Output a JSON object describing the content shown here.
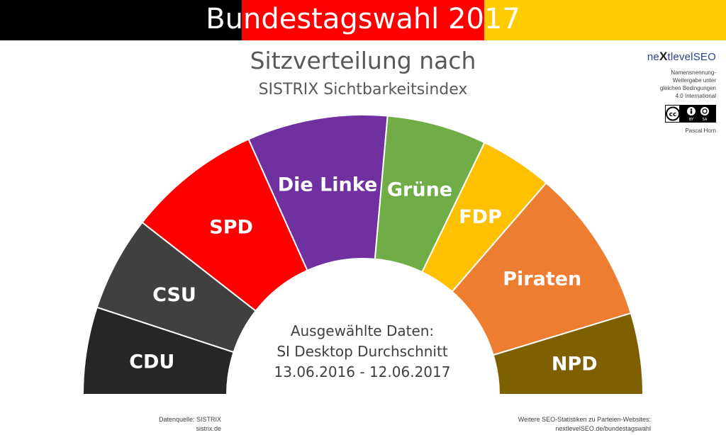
{
  "header": {
    "banner_title": "Bundestagswahl 2017",
    "subtitle_line1": "Sitzverteilung nach",
    "subtitle_line2": "SISTRIX Sichtbarkeitsindex",
    "flag_colors": [
      "#000000",
      "#ff0000",
      "#ffcc00"
    ]
  },
  "center": {
    "line1": "Ausgewählte Daten:",
    "line2": "SI Desktop Durchschnitt",
    "line3": "13.06.2016 - 12.06.2017"
  },
  "branding": {
    "logo_prefix": "ne",
    "logo_x": "X",
    "logo_suffix": "tlevelSEO",
    "license_line1": "Namensnennung-",
    "license_line2": "Weitergabe unter",
    "license_line3": "gleichen Bedingungen",
    "license_line4": "4.0 International",
    "cc_symbol": "cc",
    "cc_by": "BY",
    "cc_sa": "SA",
    "author": "Pascal Horn"
  },
  "footer": {
    "source_line1": "Datenquelle: SISTRIX",
    "source_line2": "sistrix.de",
    "stats_line1": "Weitere SEO-Statistiken zu Parteien-Websites:",
    "stats_line2": "nextlevelSEO.de/bundestagswahl"
  },
  "chart_data": {
    "type": "pie",
    "variant": "semicircle-parliament",
    "slices": [
      {
        "label": "CDU",
        "value": 10.1,
        "color": "#262626"
      },
      {
        "label": "CSU",
        "value": 11.0,
        "color": "#404040"
      },
      {
        "label": "SPD",
        "value": 15.5,
        "color": "#ff0000"
      },
      {
        "label": "Die Linke",
        "value": 16.2,
        "color": "#7030a0"
      },
      {
        "label": "Grüne",
        "value": 11.5,
        "color": "#70ad47"
      },
      {
        "label": "FDP",
        "value": 8.4,
        "color": "#ffc000"
      },
      {
        "label": "Piraten",
        "value": 17.9,
        "color": "#ed7d31"
      },
      {
        "label": "NPD",
        "value": 9.4,
        "color": "#7f6000"
      }
    ]
  }
}
